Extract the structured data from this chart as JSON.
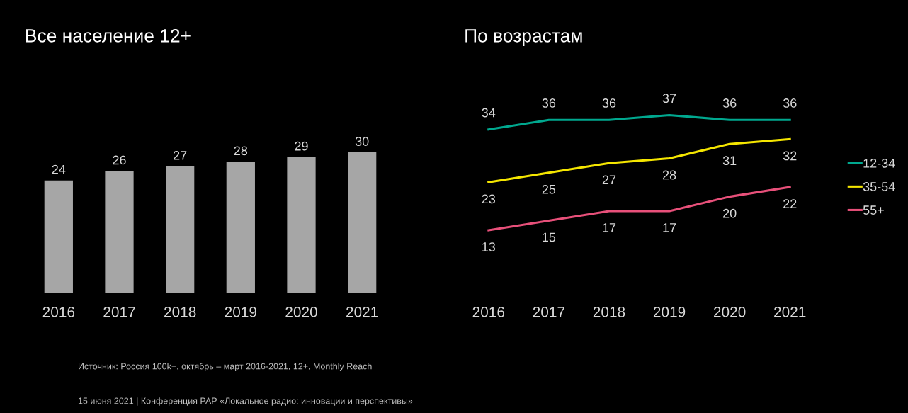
{
  "chart_data": [
    {
      "type": "bar",
      "title": "Все население 12+",
      "categories": [
        "2016",
        "2017",
        "2018",
        "2019",
        "2020",
        "2021"
      ],
      "values": [
        24,
        26,
        27,
        28,
        29,
        30
      ],
      "color": "#a6a6a6",
      "data_labels": true,
      "annotations": [
        "Источник: Россия 100k+, октябрь – март 2016-2021, 12+, Monthly Reach",
        "15 июня 2021 | Конференция РАР «Локальное радио: инновации и перспективы»"
      ]
    },
    {
      "type": "line",
      "title": "По возрастам",
      "categories": [
        "2016",
        "2017",
        "2018",
        "2019",
        "2020",
        "2021"
      ],
      "data_labels": true,
      "legend": "right",
      "marker": "none",
      "line_style": "solid",
      "series": [
        {
          "name": "12-34",
          "color": "#00a88f",
          "values": [
            34,
            36,
            36,
            37,
            36,
            36
          ]
        },
        {
          "name": "35-54",
          "color": "#f5e600",
          "values": [
            23,
            25,
            27,
            28,
            31,
            32
          ]
        },
        {
          "name": "55+",
          "color": "#e8507a",
          "values": [
            13,
            15,
            17,
            17,
            20,
            22
          ]
        }
      ]
    }
  ]
}
